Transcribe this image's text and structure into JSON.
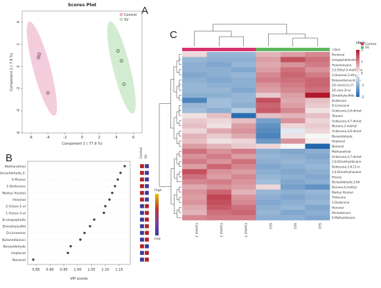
{
  "panels": {
    "a": "A",
    "b": "B",
    "c": "C"
  },
  "chart_data": [
    {
      "type": "scatter",
      "title": "Scores Plot",
      "xlabel": "Component 1 ( 77.9 %)",
      "ylabel": "Component 2 ( 7.9 %)",
      "xlim": [
        -7,
        7
      ],
      "ylim": [
        -6,
        5
      ],
      "x_ticks": [
        "-6",
        "-4",
        "-2",
        "0",
        "2",
        "4",
        "6"
      ],
      "y_ticks": [
        "-6",
        "-4",
        "-2",
        "0",
        "2",
        "4"
      ],
      "legend": {
        "position": "top-right",
        "items": [
          "Control",
          "SV"
        ]
      },
      "series": [
        {
          "name": "Control",
          "color": "#e0709a",
          "points": [
            [
              -5.0,
              1.1
            ],
            [
              -5.1,
              0.8
            ],
            [
              -4.0,
              -2.4
            ]
          ]
        },
        {
          "name": "SV",
          "color": "#7fc97f",
          "points": [
            [
              4.2,
              1.4
            ],
            [
              4.6,
              0.5
            ],
            [
              4.9,
              -1.6
            ]
          ]
        }
      ],
      "ellipses": [
        {
          "name": "Control",
          "color": "#e0709a",
          "cx": -4.7,
          "cy": -0.2,
          "rx": 1.0,
          "ry": 4.4,
          "angle": -15
        },
        {
          "name": "SV",
          "color": "#7fc97f",
          "cx": 4.6,
          "cy": -0.1,
          "rx": 1.0,
          "ry": 4.3,
          "angle": -14
        }
      ]
    },
    {
      "type": "scatter",
      "xlabel": "VIP scores",
      "xlim": [
        0.82,
        1.19
      ],
      "x_ticks": [
        "0.85",
        "0.90",
        "0.95",
        "1.00",
        "1.05",
        "1.10",
        "1.15"
      ],
      "columns": [
        "Control",
        "SV"
      ],
      "scale": {
        "high": "High",
        "low": "Low"
      },
      "features": [
        {
          "name": "Methanethiol",
          "vip": 1.17,
          "high": "Control"
        },
        {
          "name": "Benzaldehyde,3-",
          "vip": 1.155,
          "high": "Control"
        },
        {
          "name": "A-Pinene",
          "vip": 1.145,
          "high": "Control"
        },
        {
          "name": "1-Dodecene",
          "vip": 1.135,
          "high": "Control"
        },
        {
          "name": "Methyl Alcohol",
          "vip": 1.125,
          "high": "Control"
        },
        {
          "name": "Hexanal",
          "vip": 1.115,
          "high": "Control"
        },
        {
          "name": "2-Octen-1-ol",
          "vip": 1.1,
          "high": "SV"
        },
        {
          "name": "1-Octen-3-ol",
          "vip": 1.095,
          "high": "SV"
        },
        {
          "name": "B-sesquiphella",
          "vip": 1.06,
          "high": "SV"
        },
        {
          "name": "Dimethylsulfid",
          "vip": 1.045,
          "high": "SV"
        },
        {
          "name": "D-Limonene",
          "vip": 1.025,
          "high": "SV"
        },
        {
          "name": "Butanedioicaci",
          "vip": 1.01,
          "high": "SV"
        },
        {
          "name": "Benzaldehyde",
          "vip": 0.975,
          "high": "Control"
        },
        {
          "name": "Heptanal",
          "vip": 0.965,
          "high": "SV"
        },
        {
          "name": "Nonanal",
          "vip": 0.84,
          "high": "SV"
        }
      ]
    },
    {
      "type": "heatmap",
      "legend_title": "class",
      "classes": [
        {
          "name": "Control",
          "color": "#d6336c"
        },
        {
          "name": "SV",
          "color": "#5cb85c"
        }
      ],
      "color_scale": {
        "min": -2,
        "max": 2,
        "ticks": [
          "2",
          "1",
          "0",
          "-1",
          "-2"
        ]
      },
      "samples": [
        "Control 1",
        "Control 2",
        "Control 3",
        "SV3",
        "SV1",
        "SV2"
      ],
      "sample_class": [
        "Control",
        "Control",
        "Control",
        "SV",
        "SV",
        "SV"
      ],
      "rows": [
        "Pentanal",
        "sesquiphellandren",
        "Hexenoxyane",
        "3,2-Ethyl-3-methylhe",
        "1-Hexanol,2-ethyl",
        "Butanedioicacid,eth",
        "2O-clon1(cl,cl')",
        "2O-clen-3l-ol",
        "Dimethylsulfide",
        "Dodecane",
        "D-Limonene",
        "Undecane,2,6-dimet",
        "Toluene",
        "Undecane,4,7-dimet",
        "Nonane,2-methyl",
        "Undecane,4,6-dimet",
        "Benzaldehyde",
        "Heptanal",
        "Nonanal",
        "Methanethiol",
        "Undecane,2,7-dimet",
        "2,6-Dimethyldecane",
        "Dodecane,2,6,11-tr",
        "2,4-Dimethylhexane",
        "Pinene",
        "Benzaldehyde,3,4d",
        "Decane,4-methyl",
        "Methyl Alcohol",
        "Tridecane",
        "1-Dodecene",
        "Hexanal",
        "Pentadecane",
        "4-Methyldecane"
      ],
      "values": [
        [
          0.3,
          -0.9,
          -0.9,
          0.6,
          0.8,
          1.0
        ],
        [
          -0.9,
          -1.0,
          -1.0,
          0.8,
          1.5,
          1.2
        ],
        [
          -1.0,
          -1.1,
          -0.9,
          0.7,
          0.9,
          1.1
        ],
        [
          -1.0,
          -1.0,
          -1.1,
          0.8,
          1.2,
          0.9
        ],
        [
          -1.1,
          -1.0,
          -0.9,
          1.0,
          1.3,
          1.1
        ],
        [
          -1.0,
          -1.1,
          -1.0,
          1.1,
          1.2,
          1.3
        ],
        [
          -0.9,
          -1.0,
          -1.0,
          0.9,
          1.1,
          1.3
        ],
        [
          -0.9,
          -0.9,
          -1.1,
          0.8,
          1.0,
          1.2
        ],
        [
          -1.0,
          -1.0,
          -0.9,
          0.4,
          0.8,
          2.0
        ],
        [
          -1.6,
          -0.8,
          -0.9,
          1.5,
          0.7,
          0.5
        ],
        [
          -0.9,
          -0.8,
          -1.0,
          1.3,
          0.8,
          0.4
        ],
        [
          -0.8,
          -1.0,
          -0.6,
          1.4,
          1.0,
          0.2
        ],
        [
          0.2,
          0.5,
          -1.9,
          0.5,
          0.6,
          0.5
        ],
        [
          0.4,
          0.3,
          0.5,
          -1.2,
          0.9,
          0.3
        ],
        [
          0.5,
          0.2,
          0.8,
          -1.4,
          0.3,
          0.4
        ],
        [
          0.3,
          0.7,
          0.9,
          -1.5,
          -0.2,
          0.3
        ],
        [
          0.6,
          0.4,
          0.7,
          -1.6,
          0.2,
          0.0
        ],
        [
          0.5,
          0.2,
          0.3,
          -1.3,
          0.9,
          0.1
        ],
        [
          0.8,
          0.6,
          0.4,
          0.3,
          0.0,
          -2.0
        ],
        [
          1.2,
          0.9,
          1.1,
          -1.0,
          -1.1,
          -1.0
        ],
        [
          0.9,
          1.1,
          0.8,
          -0.9,
          -1.0,
          -1.1
        ],
        [
          1.1,
          0.9,
          1.2,
          -1.0,
          -0.9,
          -1.0
        ],
        [
          0.8,
          1.3,
          1.0,
          -1.1,
          -1.0,
          -0.9
        ],
        [
          1.5,
          0.9,
          0.8,
          -1.0,
          -1.1,
          -1.0
        ],
        [
          1.2,
          0.8,
          1.0,
          -0.9,
          -1.0,
          -1.1
        ],
        [
          1.0,
          1.1,
          0.9,
          -0.8,
          -1.1,
          -1.0
        ],
        [
          0.7,
          0.9,
          0.8,
          0.3,
          -1.2,
          -1.4
        ],
        [
          0.9,
          1.3,
          0.6,
          -0.9,
          -1.0,
          -0.9
        ],
        [
          0.8,
          1.6,
          0.9,
          -1.0,
          -1.1,
          -1.0
        ],
        [
          0.9,
          1.5,
          1.0,
          -1.1,
          -1.0,
          -0.9
        ],
        [
          0.7,
          1.4,
          1.2,
          -1.0,
          -0.9,
          -1.1
        ],
        [
          0.6,
          1.2,
          1.3,
          -0.9,
          -1.1,
          -1.0
        ],
        [
          1.0,
          1.1,
          1.1,
          -1.0,
          -1.0,
          -1.1
        ]
      ]
    }
  ]
}
